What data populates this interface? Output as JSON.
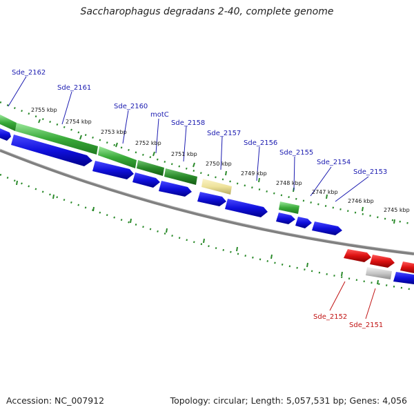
{
  "title": "Saccharophagus degradans 2-40, complete genome",
  "footer": {
    "accession": "Accession: NC_007912",
    "summary": "Topology: circular; Length: 5,057,531 bp; Genes: 4,056"
  },
  "colors": {
    "forward_cds": "#3aaa3a",
    "forward_cds_dark": "#1f7a1f",
    "reverse_cds": "#1010dd",
    "reverse_red": "#dd1111",
    "gray_feature": "#c8c8c8",
    "yellow_feature": "#eee29a",
    "tick": "#2a8a2a",
    "backbone": "#808080",
    "label_blue": "#1a1ab0",
    "label_red": "#c01010"
  },
  "tick_labels": [
    "2755 kbp",
    "2754 kbp",
    "2753 kbp",
    "2752 kbp",
    "2751 kbp",
    "2750 kbp",
    "2749 kbp",
    "2748 kbp",
    "2747 kbp",
    "2746 kbp",
    "2745 kbp"
  ],
  "gene_labels_blue": [
    "Sde_2162",
    "Sde_2161",
    "Sde_2160",
    "motC",
    "Sde_2158",
    "Sde_2157",
    "Sde_2156",
    "Sde_2155",
    "Sde_2154",
    "Sde_2153"
  ],
  "gene_labels_red": [
    "Sde_2152",
    "Sde_2151"
  ]
}
